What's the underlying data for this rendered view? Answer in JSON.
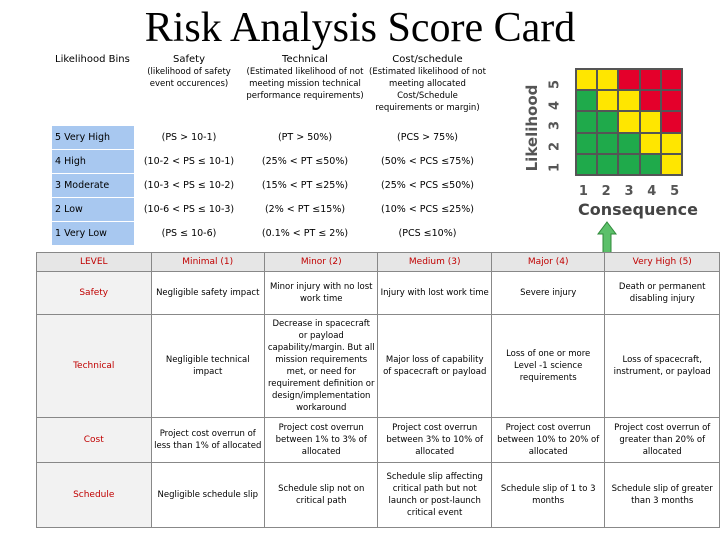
{
  "title": "Risk Analysis Score Card",
  "likelihood_table": {
    "headers": [
      {
        "label": "Likelihood Bins",
        "sub": ""
      },
      {
        "label": "Safety",
        "sub": "(likelihood of safety event occurences)"
      },
      {
        "label": "Technical",
        "sub": "(Estimated likelihood of not meeting mission technical performance requirements)"
      },
      {
        "label": "Cost/schedule",
        "sub": "(Estimated likelihood of not meeting allocated Cost/Schedule requirements or margin)"
      }
    ],
    "rows": [
      {
        "bin": "5 Very High",
        "safety": "(PS > 10-1)",
        "technical": "(PT > 50%)",
        "cost": "(PCS > 75%)"
      },
      {
        "bin": "4 High",
        "safety": "(10-2 < PS ≤ 10-1)",
        "technical": "(25% < PT ≤50%)",
        "cost": "(50% < PCS ≤75%)"
      },
      {
        "bin": "3 Moderate",
        "safety": "(10-3 < PS ≤ 10-2)",
        "technical": "(15% < PT ≤25%)",
        "cost": "(25% < PCS ≤50%)"
      },
      {
        "bin": "2 Low",
        "safety": "(10-6 < PS ≤ 10-3)",
        "technical": "(2% < PT ≤15%)",
        "cost": "(10% < PCS ≤25%)"
      },
      {
        "bin": "1 Very Low",
        "safety": "(PS ≤ 10-6)",
        "technical": "(0.1% < PT ≤ 2%)",
        "cost": "(PCS ≤10%)"
      }
    ]
  },
  "matrix": {
    "y_label": "Likelihood",
    "x_label": "Consequence",
    "ticks": [
      "1",
      "2",
      "3",
      "4",
      "5"
    ],
    "colors": {
      "green": "#1faa4b",
      "yellow": "#ffe600",
      "red": "#e4002b"
    },
    "grid_top_to_bottom": [
      [
        "yellow",
        "yellow",
        "red",
        "red",
        "red"
      ],
      [
        "green",
        "yellow",
        "yellow",
        "red",
        "red"
      ],
      [
        "green",
        "green",
        "yellow",
        "yellow",
        "red"
      ],
      [
        "green",
        "green",
        "green",
        "yellow",
        "yellow"
      ],
      [
        "green",
        "green",
        "green",
        "green",
        "yellow"
      ]
    ]
  },
  "consequence_table": {
    "headers": [
      "LEVEL",
      "Minimal (1)",
      "Minor (2)",
      "Medium (3)",
      "Major (4)",
      "Very High (5)"
    ],
    "rows": [
      {
        "level": "Safety",
        "cells": [
          "Negligible safety impact",
          "Minor injury with no lost work time",
          "Injury with lost work time",
          "Severe injury",
          "Death or permanent disabling injury"
        ]
      },
      {
        "level": "Technical",
        "cells": [
          "Negligible technical impact",
          "Decrease in spacecraft or payload capability/margin. But all mission requirements met, or need for requirement definition or design/implementation workaround",
          "Major loss of capability of spacecraft or payload",
          "Loss of one or more Level -1 science requirements",
          "Loss of spacecraft, instrument, or payload"
        ]
      },
      {
        "level": "Cost",
        "cells": [
          "Project cost overrun of less than 1% of allocated",
          "Project cost overrun between 1% to 3% of allocated",
          "Project cost overrun between 3% to 10% of allocated",
          "Project cost overrun between 10% to 20% of allocated",
          "Project cost overrun of greater than 20% of allocated"
        ]
      },
      {
        "level": "Schedule",
        "cells": [
          "Negligible schedule slip",
          "Schedule slip not on critical path",
          "Schedule slip affecting critical path but not launch or post-launch critical event",
          "Schedule slip of 1 to 3 months",
          "Schedule slip of greater than 3 months"
        ]
      }
    ]
  }
}
